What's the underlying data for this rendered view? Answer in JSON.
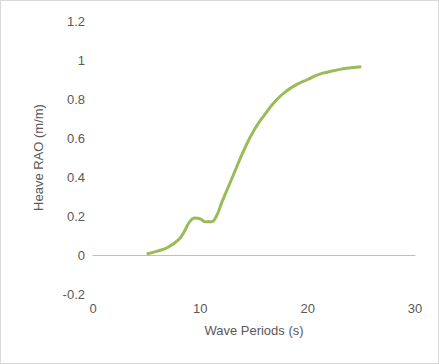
{
  "chart_data": {
    "type": "line",
    "x_label": "Wave Periods (s)",
    "y_label": "Heave RAO (m/m)",
    "x": [
      5,
      6,
      7,
      8,
      8.5,
      9,
      9.5,
      10,
      10.5,
      11,
      11.5,
      12,
      13,
      14,
      15,
      16,
      17,
      18,
      19,
      20,
      21,
      22,
      23,
      24,
      25
    ],
    "values": [
      0.005,
      0.02,
      0.04,
      0.08,
      0.12,
      0.17,
      0.19,
      0.185,
      0.17,
      0.17,
      0.2,
      0.27,
      0.4,
      0.53,
      0.64,
      0.72,
      0.79,
      0.84,
      0.875,
      0.9,
      0.925,
      0.94,
      0.952,
      0.96,
      0.965
    ],
    "color": "#9bbb59",
    "xlim": [
      0,
      30
    ],
    "xticks": [
      0,
      10,
      20,
      30
    ],
    "ylim": [
      -0.2,
      1.2
    ],
    "yticks": [
      -0.2,
      0,
      0.2,
      0.4,
      0.6,
      0.8,
      1,
      1.2
    ],
    "grid": false
  }
}
